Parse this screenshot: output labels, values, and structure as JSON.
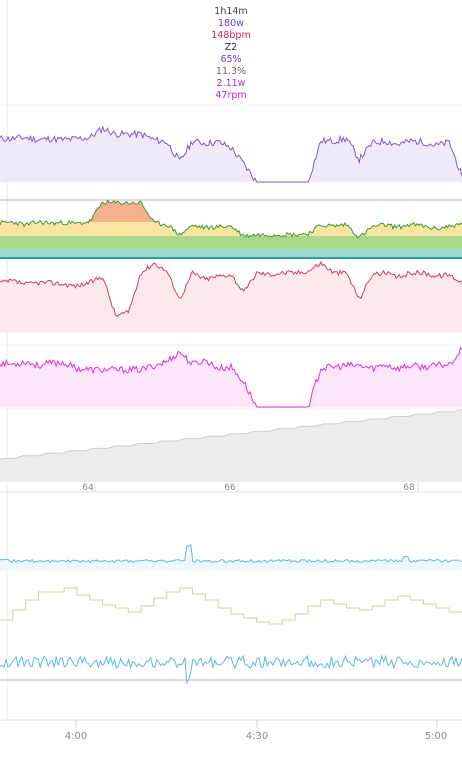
{
  "summary": {
    "duration": "1h14m",
    "power": "180w",
    "heart_rate": "148bpm",
    "zone": "Z2",
    "percent": "65%",
    "percent2": "11.3%",
    "wkg": "2.11w",
    "cadence": "47rpm"
  },
  "colors": {
    "duration": "#444444",
    "power": "#6a3fcf",
    "heart_rate": "#d02060",
    "zone": "#333333",
    "percent": "#6a3fcf",
    "percent2": "#666666",
    "wkg": "#9a2fd0",
    "cadence": "#cc22cc",
    "power_line": "#7f5bd1",
    "power_fill": "#efeaf8",
    "hr_line": "#d04060",
    "hr_fill": "#fbe9ee",
    "cad_line": "#dd33dd",
    "cad_fill": "#fbe6fb",
    "elev_fill": "#ececec",
    "elev_line": "#cfcfcf",
    "blue_line": "#5fbbe0",
    "tan_line": "#d8cfa8"
  },
  "markers": [
    "64",
    "66",
    "68"
  ],
  "time_axis": [
    "4:00",
    "4:30",
    "5:00"
  ],
  "chart_data": {
    "type": "line",
    "x": [
      "3:50",
      "3:52",
      "3:54",
      "3:56",
      "3:58",
      "4:00",
      "4:02",
      "4:04",
      "4:06",
      "4:08",
      "4:10",
      "4:12",
      "4:14",
      "4:16",
      "4:18",
      "4:20",
      "4:22",
      "4:24",
      "4:26",
      "4:28",
      "4:30",
      "4:32",
      "4:34",
      "4:36",
      "4:38",
      "4:40",
      "4:42",
      "4:44",
      "4:46",
      "4:48",
      "4:50",
      "4:52",
      "4:54",
      "4:56",
      "4:58",
      "5:00",
      "5:02"
    ],
    "series": [
      {
        "values": [
          38,
          38,
          39,
          37,
          38,
          37,
          38,
          39,
          47,
          42,
          42,
          42,
          37,
          35,
          18,
          36,
          34,
          35,
          30,
          16,
          0,
          0,
          0,
          0,
          0,
          36,
          36,
          38,
          20,
          34,
          36,
          33,
          36,
          35,
          32,
          35,
          5
        ]
      },
      {
        "values": [
          60,
          62,
          57,
          62,
          60,
          61,
          59,
          63,
          96,
          95,
          95,
          95,
          60,
          58,
          40,
          56,
          52,
          54,
          55,
          38,
          40,
          40,
          41,
          40,
          42,
          57,
          55,
          58,
          35,
          54,
          57,
          53,
          58,
          55,
          50,
          55,
          58
        ]
      },
      {
        "values": [
          30,
          31,
          29,
          30,
          30,
          29,
          28,
          30,
          34,
          10,
          12,
          36,
          42,
          37,
          20,
          36,
          32,
          34,
          35,
          24,
          36,
          35,
          36,
          36,
          37,
          42,
          36,
          36,
          20,
          35,
          36,
          33,
          36,
          36,
          34,
          35,
          30
        ]
      },
      {
        "values": [
          32,
          31,
          33,
          30,
          32,
          32,
          28,
          27,
          27,
          27,
          27,
          27,
          30,
          33,
          40,
          31,
          34,
          28,
          29,
          18,
          0,
          0,
          0,
          0,
          0,
          28,
          29,
          30,
          30,
          28,
          31,
          28,
          30,
          29,
          30,
          31,
          42
        ]
      }
    ]
  }
}
